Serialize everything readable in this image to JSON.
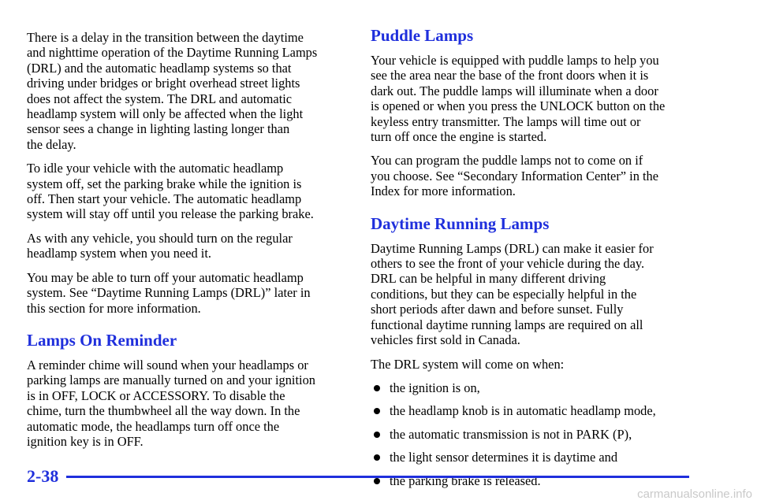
{
  "left": {
    "paragraphs_a": [
      "There is a delay in the transition between the daytime\nand nighttime operation of the Daytime Running Lamps\n(DRL) and the automatic headlamp systems so that\ndriving under bridges or bright overhead street lights\ndoes not affect the system. The DRL and automatic\nheadlamp system will only be affected when the light\nsensor sees a change in lighting lasting longer than\nthe delay.",
      "To idle your vehicle with the automatic headlamp\nsystem off, set the parking brake while the ignition is\noff. Then start your vehicle. The automatic headlamp\nsystem will stay off until you release the parking brake.",
      "As with any vehicle, you should turn on the regular\nheadlamp system when you need it.",
      "You may be able to turn off your automatic headlamp\nsystem. See “Daytime Running Lamps (DRL)” later in\nthis section for more information."
    ],
    "heading_reminder": "Lamps On Reminder",
    "paragraph_reminder": "A reminder chime will sound when your headlamps or\nparking lamps are manually turned on and your ignition\nis in OFF, LOCK or ACCESSORY. To disable the\nchime, turn the thumbwheel all the way down. In the\nautomatic mode, the headlamps turn off once the\nignition key is in OFF."
  },
  "right": {
    "heading_puddle": "Puddle Lamps",
    "puddle_paragraphs": [
      "Your vehicle is equipped with puddle lamps to help you\nsee the area near the base of the front doors when it is\ndark out. The puddle lamps will illuminate when a door\nis opened or when you press the UNLOCK button on the\nkeyless entry transmitter. The lamps will time out or\nturn off once the engine is started.",
      "You can program the puddle lamps not to come on if\nyou choose. See “Secondary Information Center” in the\nIndex for more information."
    ],
    "heading_drl": "Daytime Running Lamps",
    "drl_paragraphs": [
      "Daytime Running Lamps (DRL) can make it easier for\nothers to see the front of your vehicle during the day.\nDRL can be helpful in many different driving\nconditions, but they can be especially helpful in the\nshort periods after dawn and before sunset. Fully\nfunctional daytime running lamps are required on all\nvehicles first sold in Canada.",
      "The DRL system will come on when:"
    ],
    "bullets": [
      "the ignition is on,",
      "the headlamp knob is in automatic headlamp mode,",
      "the automatic transmission is not in PARK (P),",
      "the light sensor determines it is daytime and",
      "the parking brake is released."
    ]
  },
  "footer": {
    "page_number": "2-38",
    "watermark": "carmanualsonline.info"
  },
  "colors": {
    "heading": "#1f2fdc",
    "text": "#000000"
  }
}
